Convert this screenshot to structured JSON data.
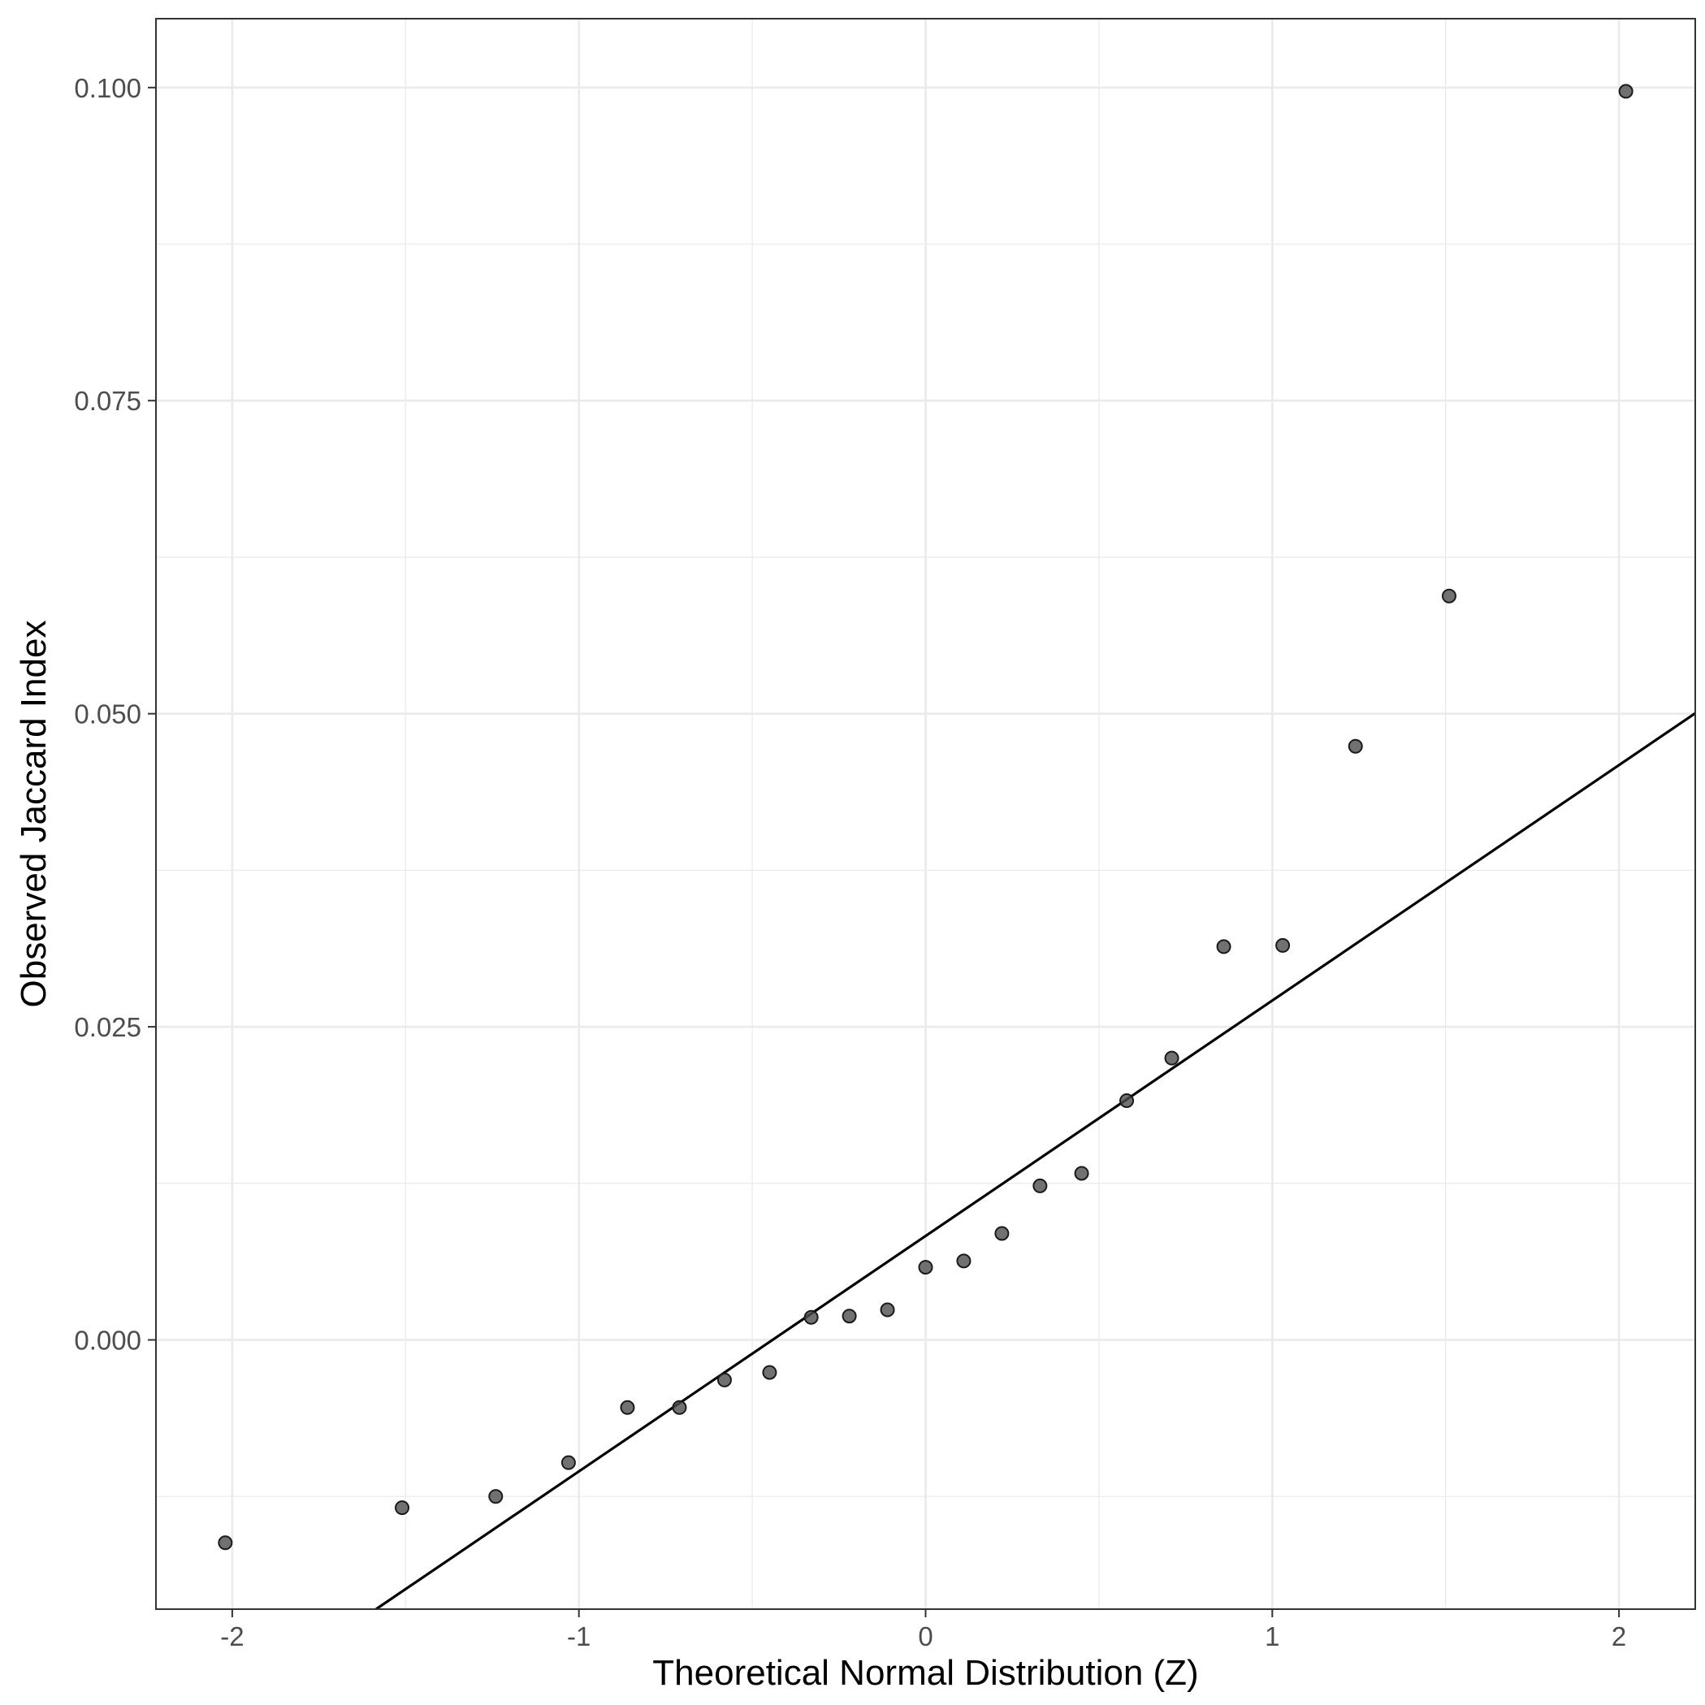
{
  "chart_data": {
    "type": "scatter",
    "title": "",
    "xlabel": "Theoretical Normal Distribution (Z)",
    "ylabel": "Observed Jaccard Index",
    "xlim": [
      -2.22,
      2.22
    ],
    "ylim": [
      -0.0215,
      0.1055
    ],
    "x_ticks": [
      -2,
      -1,
      0,
      1,
      2
    ],
    "x_tick_labels": [
      "-2",
      "-1",
      "0",
      "1",
      "2"
    ],
    "y_ticks": [
      0.0,
      0.025,
      0.05,
      0.075,
      0.1
    ],
    "y_tick_labels": [
      "0.000",
      "0.025",
      "0.050",
      "0.075",
      "0.100"
    ],
    "grid": true,
    "legend": "none",
    "point_color": "#4d4d4d",
    "line_color": "#000000",
    "reference_line": {
      "intercept": 0.0083,
      "slope": 0.0188
    },
    "series": [
      {
        "x": [
          -2.02,
          -1.51,
          -1.24,
          -1.03,
          -0.86,
          -0.71,
          -0.58,
          -0.45,
          -0.33,
          -0.22,
          -0.11,
          0.0,
          0.11,
          0.22,
          0.33,
          0.45,
          0.58,
          0.71,
          0.86,
          1.03,
          1.24,
          1.51,
          2.02
        ],
        "y": [
          -0.0162,
          -0.0134,
          -0.0125,
          -0.0098,
          -0.0054,
          -0.0054,
          -0.0032,
          -0.0026,
          0.0018,
          0.0019,
          0.0024,
          0.0058,
          0.0063,
          0.0085,
          0.0123,
          0.0133,
          0.0191,
          0.0225,
          0.0314,
          0.0315,
          0.0474,
          0.0594,
          0.0997
        ]
      }
    ]
  }
}
